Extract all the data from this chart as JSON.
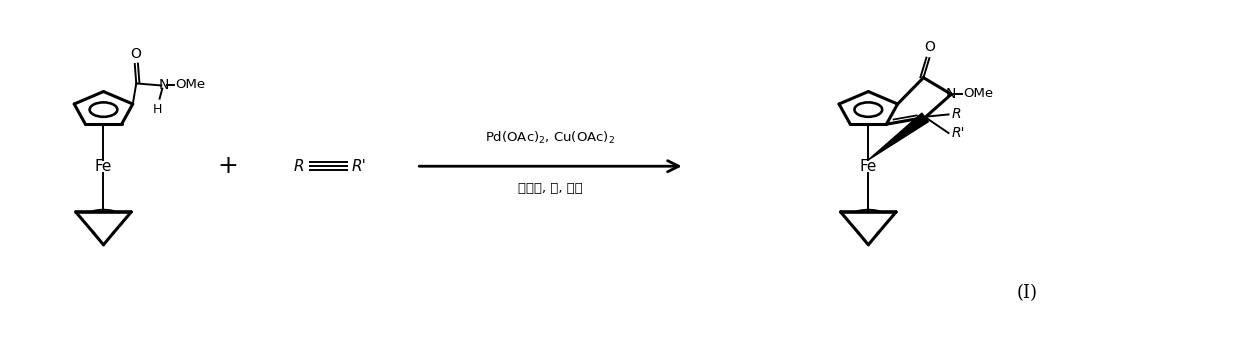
{
  "background_color": "#ffffff",
  "figure_width": 12.4,
  "figure_height": 3.51,
  "dpi": 100,
  "arrow_text_line1": "Pd(OAc)$_2$, Cu(OAc)$_2$",
  "arrow_text_line2": "季锐盐, 碱, 溶剂",
  "label_I": "(Ⅰ)",
  "plus_sign": "+"
}
